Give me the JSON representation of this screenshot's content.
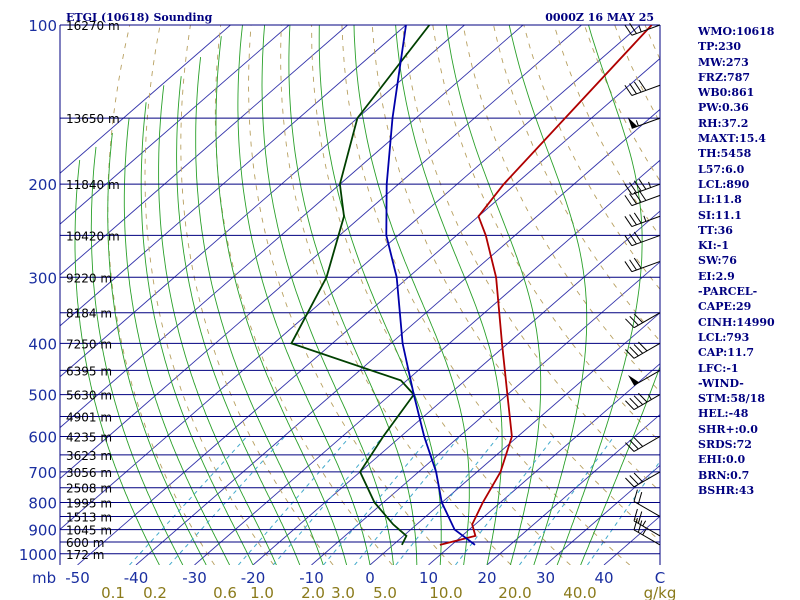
{
  "header": {
    "station_title": "ETGI (10618) Sounding",
    "time_title": "0000Z 16 MAY 25"
  },
  "indices": [
    "WMO:10618",
    "TP:230",
    "MW:273",
    "FRZ:787",
    "WB0:861",
    "PW:0.36",
    "RH:37.2",
    "MAXT:15.4",
    "TH:5458",
    "L57:6.0",
    "LCL:890",
    "LI:11.8",
    "SI:11.1",
    "TT:36",
    "KI:-1",
    "SW:76",
    "EI:2.9",
    "-PARCEL-",
    "CAPE:29",
    "CINH:14990",
    "LCL:793",
    "CAP:11.7",
    "LFC:-1",
    "-WIND-",
    "STM:58/18",
    "HEL:-48",
    "SHR+:0.0",
    "SRDS:72",
    "EHI:0.0",
    "BRN:0.7",
    "BSHR:43"
  ],
  "colors": {
    "isobar": "#000080",
    "isotherm": "#3333aa",
    "dry_adiabat": "#b8a060",
    "moist_adiabat": "#2aa02a",
    "mixing_ratio": "#44aacc",
    "temperature": "#b00000",
    "dewpoint": "#004000",
    "parcel": "#0000aa",
    "wind_barb": "#000000"
  },
  "chart_data": {
    "type": "skew-t",
    "title": "ETGI (10618) Sounding",
    "xlabel": "",
    "ylabel": "mb",
    "pressure_axis_label": "mb",
    "pressure_ticks": [
      100,
      200,
      300,
      400,
      500,
      600,
      700,
      800,
      900,
      1000
    ],
    "temperature_ticks": [
      -50,
      -40,
      -30,
      -20,
      -10,
      0,
      10,
      20,
      30,
      40
    ],
    "temperature_end_label": "C",
    "mixing_ratio_ticks": [
      "0.1",
      "0.2",
      "0.6",
      "1.0",
      "2.0",
      "3.0",
      "5.0",
      "10.0",
      "20.0",
      "40.0"
    ],
    "mixing_ratio_unit": "g/kg",
    "height_labels": [
      {
        "p": 100,
        "h": "16270 m"
      },
      {
        "p": 150,
        "h": "13650 m"
      },
      {
        "p": 200,
        "h": "11840 m"
      },
      {
        "p": 250,
        "h": "10420 m"
      },
      {
        "p": 300,
        "h": "9220 m"
      },
      {
        "p": 350,
        "h": "8184 m"
      },
      {
        "p": 400,
        "h": "7250 m"
      },
      {
        "p": 450,
        "h": "6395 m"
      },
      {
        "p": 500,
        "h": "5630 m"
      },
      {
        "p": 550,
        "h": "4901 m"
      },
      {
        "p": 600,
        "h": "4235 m"
      },
      {
        "p": 650,
        "h": "3623 m"
      },
      {
        "p": 700,
        "h": "3056 m"
      },
      {
        "p": 750,
        "h": "2508 m"
      },
      {
        "p": 800,
        "h": "1995 m"
      },
      {
        "p": 850,
        "h": "1513 m"
      },
      {
        "p": 900,
        "h": "1045 m"
      },
      {
        "p": 950,
        "h": "600 m"
      },
      {
        "p": 1000,
        "h": "172 m"
      }
    ],
    "series": [
      {
        "name": "Temperature",
        "points": [
          {
            "p": 962,
            "t": 8.0
          },
          {
            "p": 925,
            "t": 12.3
          },
          {
            "p": 880,
            "t": 9.5
          },
          {
            "p": 800,
            "t": 7.0
          },
          {
            "p": 700,
            "t": 4.0
          },
          {
            "p": 600,
            "t": -1.0
          },
          {
            "p": 500,
            "t": -10.0
          },
          {
            "p": 400,
            "t": -21.0
          },
          {
            "p": 300,
            "t": -35.0
          },
          {
            "p": 250,
            "t": -45.0
          },
          {
            "p": 230,
            "t": -50.0
          },
          {
            "p": 200,
            "t": -52.0
          },
          {
            "p": 150,
            "t": -54.5
          },
          {
            "p": 100,
            "t": -58.0
          }
        ]
      },
      {
        "name": "Dewpoint",
        "points": [
          {
            "p": 962,
            "t": 1.5
          },
          {
            "p": 925,
            "t": 0.5
          },
          {
            "p": 880,
            "t": -4.0
          },
          {
            "p": 800,
            "t": -11.5
          },
          {
            "p": 700,
            "t": -20.0
          },
          {
            "p": 600,
            "t": -23.0
          },
          {
            "p": 500,
            "t": -26.0
          },
          {
            "p": 470,
            "t": -31.0
          },
          {
            "p": 400,
            "t": -57.0
          },
          {
            "p": 300,
            "t": -64.0
          },
          {
            "p": 230,
            "t": -73.0
          },
          {
            "p": 200,
            "t": -80.0
          },
          {
            "p": 150,
            "t": -90.0
          },
          {
            "p": 100,
            "t": -96.0
          }
        ]
      },
      {
        "name": "Parcel",
        "points": [
          {
            "p": 962,
            "t": 14.0
          },
          {
            "p": 900,
            "t": 7.5
          },
          {
            "p": 800,
            "t": 0.0
          },
          {
            "p": 700,
            "t": -7.0
          },
          {
            "p": 600,
            "t": -16.0
          },
          {
            "p": 500,
            "t": -26.0
          },
          {
            "p": 400,
            "t": -38.0
          },
          {
            "p": 300,
            "t": -52.0
          },
          {
            "p": 250,
            "t": -62.0
          },
          {
            "p": 200,
            "t": -72.0
          },
          {
            "p": 150,
            "t": -84.0
          },
          {
            "p": 100,
            "t": -100.0
          }
        ]
      }
    ],
    "wind_barbs": [
      {
        "p": 962,
        "dir": 300,
        "kt": 25
      },
      {
        "p": 925,
        "dir": 300,
        "kt": 25
      },
      {
        "p": 850,
        "dir": 300,
        "kt": 20
      },
      {
        "p": 700,
        "dir": 240,
        "kt": 30
      },
      {
        "p": 600,
        "dir": 240,
        "kt": 30
      },
      {
        "p": 500,
        "dir": 240,
        "kt": 45
      },
      {
        "p": 450,
        "dir": 240,
        "kt": 50
      },
      {
        "p": 400,
        "dir": 240,
        "kt": 40
      },
      {
        "p": 350,
        "dir": 240,
        "kt": 30
      },
      {
        "p": 280,
        "dir": 250,
        "kt": 30
      },
      {
        "p": 250,
        "dir": 250,
        "kt": 30
      },
      {
        "p": 230,
        "dir": 250,
        "kt": 35
      },
      {
        "p": 210,
        "dir": 250,
        "kt": 40
      },
      {
        "p": 200,
        "dir": 250,
        "kt": 45
      },
      {
        "p": 150,
        "dir": 250,
        "kt": 55
      },
      {
        "p": 130,
        "dir": 250,
        "kt": 40
      },
      {
        "p": 100,
        "dir": 250,
        "kt": 25
      }
    ]
  }
}
